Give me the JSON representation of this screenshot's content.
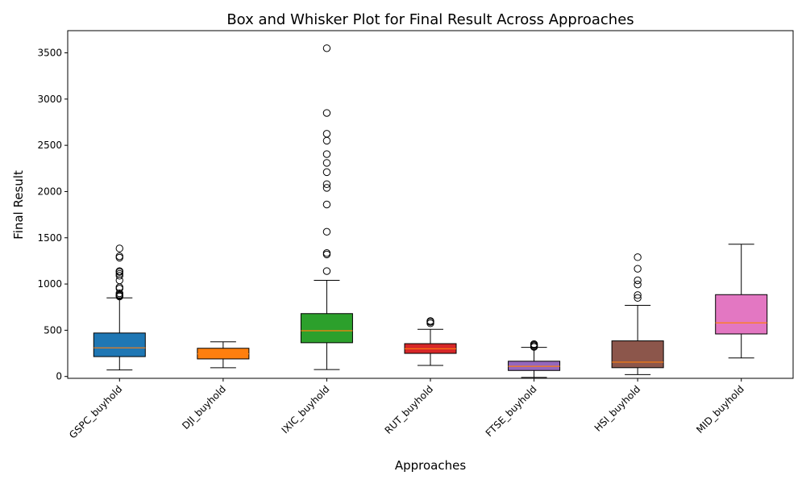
{
  "chart_data": {
    "type": "box",
    "title": "Box and Whisker Plot for Final Result Across Approaches",
    "xlabel": "Approaches",
    "ylabel": "Final Result",
    "ylim": [
      -20,
      3740
    ],
    "yticks": [
      0,
      500,
      1000,
      1500,
      2000,
      2500,
      3000,
      3500
    ],
    "grid": false,
    "legend": "none",
    "median_color": "#ff7f0e",
    "series": [
      {
        "category": "GSPC_buyhold",
        "color": "#1f77b4",
        "whisker_low": 70,
        "q1": 215,
        "median": 310,
        "q3": 470,
        "whisker_high": 850,
        "outliers": [
          865,
          875,
          885,
          900,
          950,
          965,
          1040,
          1090,
          1110,
          1130,
          1140,
          1285,
          1300,
          1385
        ]
      },
      {
        "category": "DJI_buyhold",
        "color": "#ff7f0e",
        "whisker_low": 95,
        "q1": 190,
        "median": 245,
        "q3": 305,
        "whisker_high": 375,
        "outliers": []
      },
      {
        "category": "IXIC_buyhold",
        "color": "#2ca02c",
        "whisker_low": 75,
        "q1": 365,
        "median": 495,
        "q3": 680,
        "whisker_high": 1040,
        "outliers": [
          1140,
          1320,
          1335,
          1565,
          1860,
          2040,
          2080,
          2210,
          2310,
          2405,
          2550,
          2625,
          2850,
          3550
        ]
      },
      {
        "category": "RUT_buyhold",
        "color": "#d62728",
        "whisker_low": 120,
        "q1": 250,
        "median": 300,
        "q3": 355,
        "whisker_high": 510,
        "outliers": [
          575,
          590,
          600
        ]
      },
      {
        "category": "FTSE_buyhold",
        "color": "#9467bd",
        "whisker_low": -10,
        "q1": 65,
        "median": 110,
        "q3": 165,
        "whisker_high": 315,
        "outliers": [
          320,
          330,
          340,
          350
        ]
      },
      {
        "category": "HSI_buyhold",
        "color": "#8c564b",
        "whisker_low": 20,
        "q1": 95,
        "median": 155,
        "q3": 385,
        "whisker_high": 770,
        "outliers": [
          850,
          880,
          995,
          1040,
          1165,
          1290
        ]
      },
      {
        "category": "MID_buyhold",
        "color": "#e377c2",
        "whisker_low": 200,
        "q1": 460,
        "median": 580,
        "q3": 885,
        "whisker_high": 1430,
        "outliers": []
      }
    ]
  }
}
